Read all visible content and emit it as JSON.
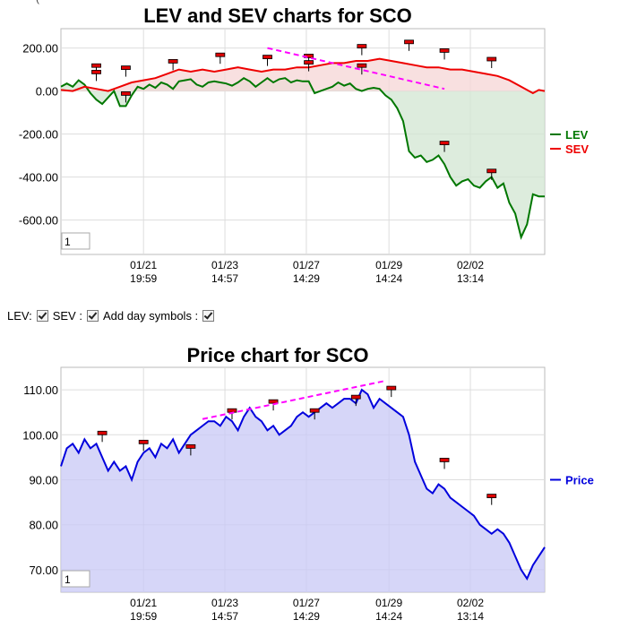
{
  "top_fragment": "(",
  "controls": {
    "lev_label": "LEV:",
    "sev_label": "SEV :",
    "day_symbols_label": "Add day symbols :",
    "lev_checked": true,
    "sev_checked": true,
    "day_symbols_checked": true
  },
  "chart_data": [
    {
      "type": "area",
      "title": "LEV and SEV charts for SCO",
      "y_ticks": [
        "200.00",
        "0.00",
        "-200.00",
        "-400.00",
        "-600.00"
      ],
      "y_tick_values": [
        200,
        0,
        -200,
        -400,
        -600
      ],
      "ylim": [
        -760,
        290
      ],
      "x_ticks": [
        {
          "date": "01/21",
          "time": "19:59"
        },
        {
          "date": "01/23",
          "time": "14:57"
        },
        {
          "date": "01/27",
          "time": "14:29"
        },
        {
          "date": "01/29",
          "time": "14:24"
        },
        {
          "date": "02/02",
          "time": "13:14"
        }
      ],
      "legend_placement": "right",
      "grid": true,
      "zoom_value": "1",
      "series": [
        {
          "name": "LEV",
          "color": "#007700",
          "fill": "#d2e6d2",
          "points": [
            [
              0,
              20
            ],
            [
              5,
              35
            ],
            [
              10,
              20
            ],
            [
              15,
              50
            ],
            [
              20,
              30
            ],
            [
              25,
              -10
            ],
            [
              30,
              -40
            ],
            [
              35,
              -60
            ],
            [
              40,
              -30
            ],
            [
              45,
              0
            ],
            [
              50,
              -70
            ],
            [
              55,
              -70
            ],
            [
              60,
              -20
            ],
            [
              65,
              20
            ],
            [
              70,
              10
            ],
            [
              75,
              30
            ],
            [
              80,
              15
            ],
            [
              85,
              40
            ],
            [
              90,
              30
            ],
            [
              95,
              10
            ],
            [
              100,
              45
            ],
            [
              105,
              50
            ],
            [
              110,
              55
            ],
            [
              115,
              30
            ],
            [
              120,
              20
            ],
            [
              125,
              40
            ],
            [
              130,
              45
            ],
            [
              135,
              40
            ],
            [
              140,
              35
            ],
            [
              145,
              25
            ],
            [
              150,
              40
            ],
            [
              155,
              60
            ],
            [
              160,
              45
            ],
            [
              165,
              20
            ],
            [
              170,
              40
            ],
            [
              175,
              60
            ],
            [
              180,
              40
            ],
            [
              185,
              55
            ],
            [
              190,
              60
            ],
            [
              195,
              40
            ],
            [
              200,
              50
            ],
            [
              205,
              45
            ],
            [
              210,
              45
            ],
            [
              215,
              -10
            ],
            [
              220,
              0
            ],
            [
              225,
              10
            ],
            [
              230,
              20
            ],
            [
              235,
              40
            ],
            [
              240,
              25
            ],
            [
              245,
              35
            ],
            [
              250,
              10
            ],
            [
              255,
              0
            ],
            [
              260,
              10
            ],
            [
              265,
              15
            ],
            [
              270,
              10
            ],
            [
              275,
              -20
            ],
            [
              280,
              -40
            ],
            [
              285,
              -80
            ],
            [
              290,
              -140
            ],
            [
              295,
              -280
            ],
            [
              300,
              -310
            ],
            [
              305,
              -300
            ],
            [
              310,
              -330
            ],
            [
              315,
              -320
            ],
            [
              320,
              -300
            ],
            [
              325,
              -340
            ],
            [
              330,
              -400
            ],
            [
              335,
              -440
            ],
            [
              340,
              -420
            ],
            [
              345,
              -410
            ],
            [
              350,
              -440
            ],
            [
              355,
              -450
            ],
            [
              360,
              -420
            ],
            [
              365,
              -400
            ],
            [
              370,
              -450
            ],
            [
              375,
              -430
            ],
            [
              380,
              -520
            ],
            [
              385,
              -570
            ],
            [
              390,
              -680
            ],
            [
              395,
              -620
            ],
            [
              400,
              -480
            ],
            [
              405,
              -490
            ],
            [
              410,
              -490
            ]
          ]
        },
        {
          "name": "SEV",
          "color": "#ee0000",
          "fill": "#f5d6d6",
          "points": [
            [
              0,
              5
            ],
            [
              10,
              0
            ],
            [
              20,
              20
            ],
            [
              30,
              10
            ],
            [
              40,
              0
            ],
            [
              50,
              20
            ],
            [
              60,
              40
            ],
            [
              70,
              50
            ],
            [
              80,
              60
            ],
            [
              90,
              80
            ],
            [
              100,
              100
            ],
            [
              110,
              90
            ],
            [
              120,
              100
            ],
            [
              130,
              90
            ],
            [
              140,
              100
            ],
            [
              150,
              110
            ],
            [
              160,
              100
            ],
            [
              170,
              90
            ],
            [
              180,
              100
            ],
            [
              190,
              100
            ],
            [
              200,
              110
            ],
            [
              210,
              110
            ],
            [
              220,
              120
            ],
            [
              230,
              130
            ],
            [
              240,
              130
            ],
            [
              250,
              140
            ],
            [
              260,
              140
            ],
            [
              270,
              150
            ],
            [
              280,
              140
            ],
            [
              290,
              130
            ],
            [
              300,
              120
            ],
            [
              310,
              110
            ],
            [
              320,
              110
            ],
            [
              330,
              100
            ],
            [
              340,
              100
            ],
            [
              350,
              90
            ],
            [
              360,
              80
            ],
            [
              370,
              70
            ],
            [
              380,
              50
            ],
            [
              390,
              20
            ],
            [
              400,
              -10
            ],
            [
              405,
              5
            ],
            [
              410,
              0
            ]
          ]
        }
      ],
      "annotations": [
        {
          "type": "day-marker",
          "x": 30,
          "y": 110
        },
        {
          "type": "day-marker",
          "x": 30,
          "y": 80
        },
        {
          "type": "day-marker",
          "x": 55,
          "y": 100
        },
        {
          "type": "day-marker",
          "x": 55,
          "y": -20
        },
        {
          "type": "day-marker",
          "x": 95,
          "y": 130
        },
        {
          "type": "day-marker",
          "x": 135,
          "y": 160
        },
        {
          "type": "day-marker",
          "x": 175,
          "y": 150
        },
        {
          "type": "day-marker",
          "x": 210,
          "y": 155
        },
        {
          "type": "day-marker",
          "x": 210,
          "y": 125
        },
        {
          "type": "day-marker",
          "x": 255,
          "y": 200
        },
        {
          "type": "day-marker",
          "x": 255,
          "y": 110
        },
        {
          "type": "day-marker",
          "x": 295,
          "y": 220
        },
        {
          "type": "day-marker",
          "x": 325,
          "y": 180
        },
        {
          "type": "day-marker",
          "x": 325,
          "y": -250
        },
        {
          "type": "day-marker",
          "x": 365,
          "y": 140
        },
        {
          "type": "day-marker",
          "x": 365,
          "y": -380
        },
        {
          "type": "trendline",
          "color": "#ff00ff",
          "points": [
            [
              175,
              200
            ],
            [
              325,
              10
            ]
          ]
        }
      ]
    },
    {
      "type": "area",
      "title": "Price chart for SCO",
      "y_ticks": [
        "110.00",
        "100.00",
        "90.00",
        "80.00",
        "70.00"
      ],
      "y_tick_values": [
        110,
        100,
        90,
        80,
        70
      ],
      "ylim": [
        65,
        115
      ],
      "x_ticks": [
        {
          "date": "01/21",
          "time": "19:59"
        },
        {
          "date": "01/23",
          "time": "14:57"
        },
        {
          "date": "01/27",
          "time": "14:29"
        },
        {
          "date": "01/29",
          "time": "14:24"
        },
        {
          "date": "02/02",
          "time": "13:14"
        }
      ],
      "legend_placement": "right",
      "grid": true,
      "zoom_value": "1",
      "series": [
        {
          "name": "Price",
          "color": "#0000dd",
          "fill": "#c8c8f5",
          "points": [
            [
              0,
              93
            ],
            [
              5,
              97
            ],
            [
              10,
              98
            ],
            [
              15,
              96
            ],
            [
              20,
              99
            ],
            [
              25,
              97
            ],
            [
              30,
              98
            ],
            [
              35,
              95
            ],
            [
              40,
              92
            ],
            [
              45,
              94
            ],
            [
              50,
              92
            ],
            [
              55,
              93
            ],
            [
              60,
              90
            ],
            [
              65,
              94
            ],
            [
              70,
              96
            ],
            [
              75,
              97
            ],
            [
              80,
              95
            ],
            [
              85,
              98
            ],
            [
              90,
              97
            ],
            [
              95,
              99
            ],
            [
              100,
              96
            ],
            [
              105,
              98
            ],
            [
              110,
              100
            ],
            [
              115,
              101
            ],
            [
              120,
              102
            ],
            [
              125,
              103
            ],
            [
              130,
              103
            ],
            [
              135,
              102
            ],
            [
              140,
              104
            ],
            [
              145,
              103
            ],
            [
              150,
              101
            ],
            [
              155,
              104
            ],
            [
              160,
              106
            ],
            [
              165,
              104
            ],
            [
              170,
              103
            ],
            [
              175,
              101
            ],
            [
              180,
              102
            ],
            [
              185,
              100
            ],
            [
              190,
              101
            ],
            [
              195,
              102
            ],
            [
              200,
              104
            ],
            [
              205,
              105
            ],
            [
              210,
              104
            ],
            [
              215,
              105
            ],
            [
              220,
              106
            ],
            [
              225,
              107
            ],
            [
              230,
              106
            ],
            [
              235,
              107
            ],
            [
              240,
              108
            ],
            [
              245,
              108
            ],
            [
              250,
              107
            ],
            [
              255,
              110
            ],
            [
              260,
              109
            ],
            [
              265,
              106
            ],
            [
              270,
              108
            ],
            [
              275,
              107
            ],
            [
              280,
              106
            ],
            [
              285,
              105
            ],
            [
              290,
              104
            ],
            [
              295,
              100
            ],
            [
              300,
              94
            ],
            [
              305,
              91
            ],
            [
              310,
              88
            ],
            [
              315,
              87
            ],
            [
              320,
              89
            ],
            [
              325,
              88
            ],
            [
              330,
              86
            ],
            [
              335,
              85
            ],
            [
              340,
              84
            ],
            [
              345,
              83
            ],
            [
              350,
              82
            ],
            [
              355,
              80
            ],
            [
              360,
              79
            ],
            [
              365,
              78
            ],
            [
              370,
              79
            ],
            [
              375,
              78
            ],
            [
              380,
              76
            ],
            [
              385,
              73
            ],
            [
              390,
              70
            ],
            [
              395,
              68
            ],
            [
              400,
              71
            ],
            [
              405,
              73
            ],
            [
              410,
              75
            ]
          ]
        }
      ],
      "annotations": [
        {
          "type": "day-marker",
          "x": 35,
          "y": 100
        },
        {
          "type": "day-marker",
          "x": 70,
          "y": 98
        },
        {
          "type": "day-marker",
          "x": 110,
          "y": 97
        },
        {
          "type": "day-marker",
          "x": 145,
          "y": 105
        },
        {
          "type": "day-marker",
          "x": 180,
          "y": 107
        },
        {
          "type": "day-marker",
          "x": 215,
          "y": 105
        },
        {
          "type": "day-marker",
          "x": 250,
          "y": 108
        },
        {
          "type": "day-marker",
          "x": 280,
          "y": 110
        },
        {
          "type": "day-marker",
          "x": 325,
          "y": 94
        },
        {
          "type": "day-marker",
          "x": 365,
          "y": 86
        },
        {
          "type": "trendline",
          "color": "#ff00ff",
          "points": [
            [
              120,
              103.5
            ],
            [
              275,
              112
            ]
          ]
        }
      ]
    }
  ]
}
